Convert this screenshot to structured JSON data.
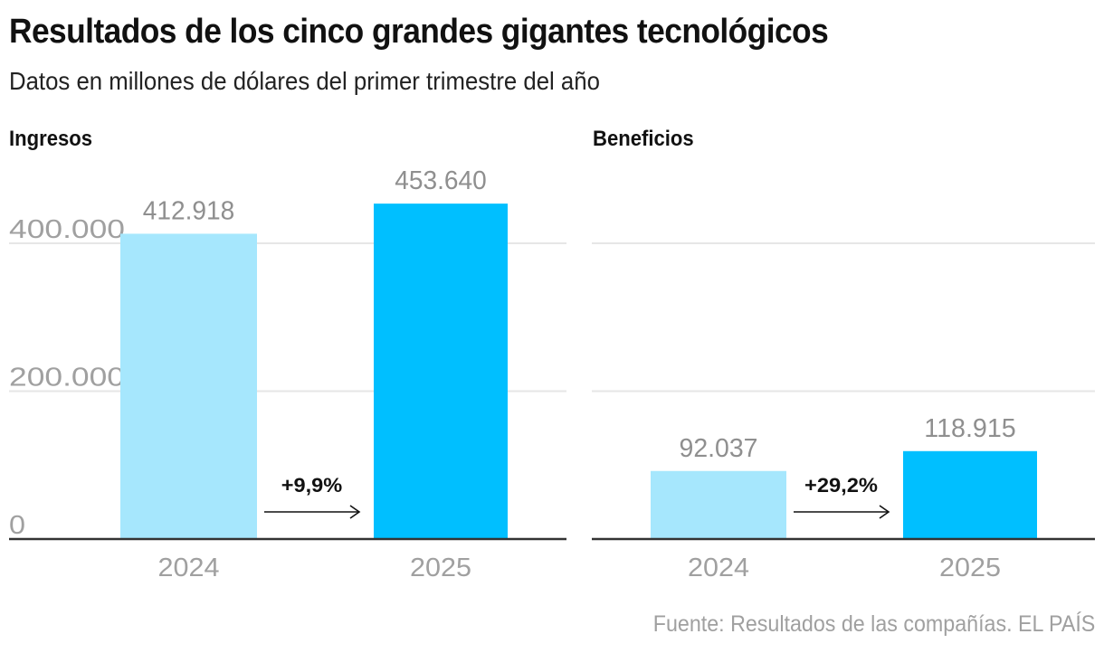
{
  "title": "Resultados de los cinco grandes gigantes tecnológicos",
  "subtitle": "Datos en millones de dólares del primer trimestre del año",
  "source": "Fuente: Resultados de las compañías. EL PAÍS",
  "colors": {
    "bar_2024": "#a6e7fd",
    "bar_2025": "#00bfff",
    "gridline": "#e6e6e6",
    "baseline": "#333333"
  },
  "chart_data": [
    {
      "type": "bar",
      "title": "Ingresos",
      "xlabel": "",
      "ylabel": "",
      "categories": [
        "2024",
        "2025"
      ],
      "values": [
        412918,
        453640
      ],
      "value_labels": [
        "412.918",
        "453.640"
      ],
      "ylim": [
        0,
        460000
      ],
      "yticks": [
        0,
        200000,
        400000
      ],
      "ytick_labels": [
        "0",
        "200.000",
        "400.000"
      ],
      "grid": true,
      "change_annotation": "+9,9%"
    },
    {
      "type": "bar",
      "title": "Beneficios",
      "xlabel": "",
      "ylabel": "",
      "categories": [
        "2024",
        "2025"
      ],
      "values": [
        92037,
        118915
      ],
      "value_labels": [
        "92.037",
        "118.915"
      ],
      "ylim": [
        0,
        460000
      ],
      "yticks": [
        0,
        200000,
        400000
      ],
      "ytick_labels": [
        "",
        "",
        ""
      ],
      "grid": true,
      "change_annotation": "+29,2%"
    }
  ]
}
